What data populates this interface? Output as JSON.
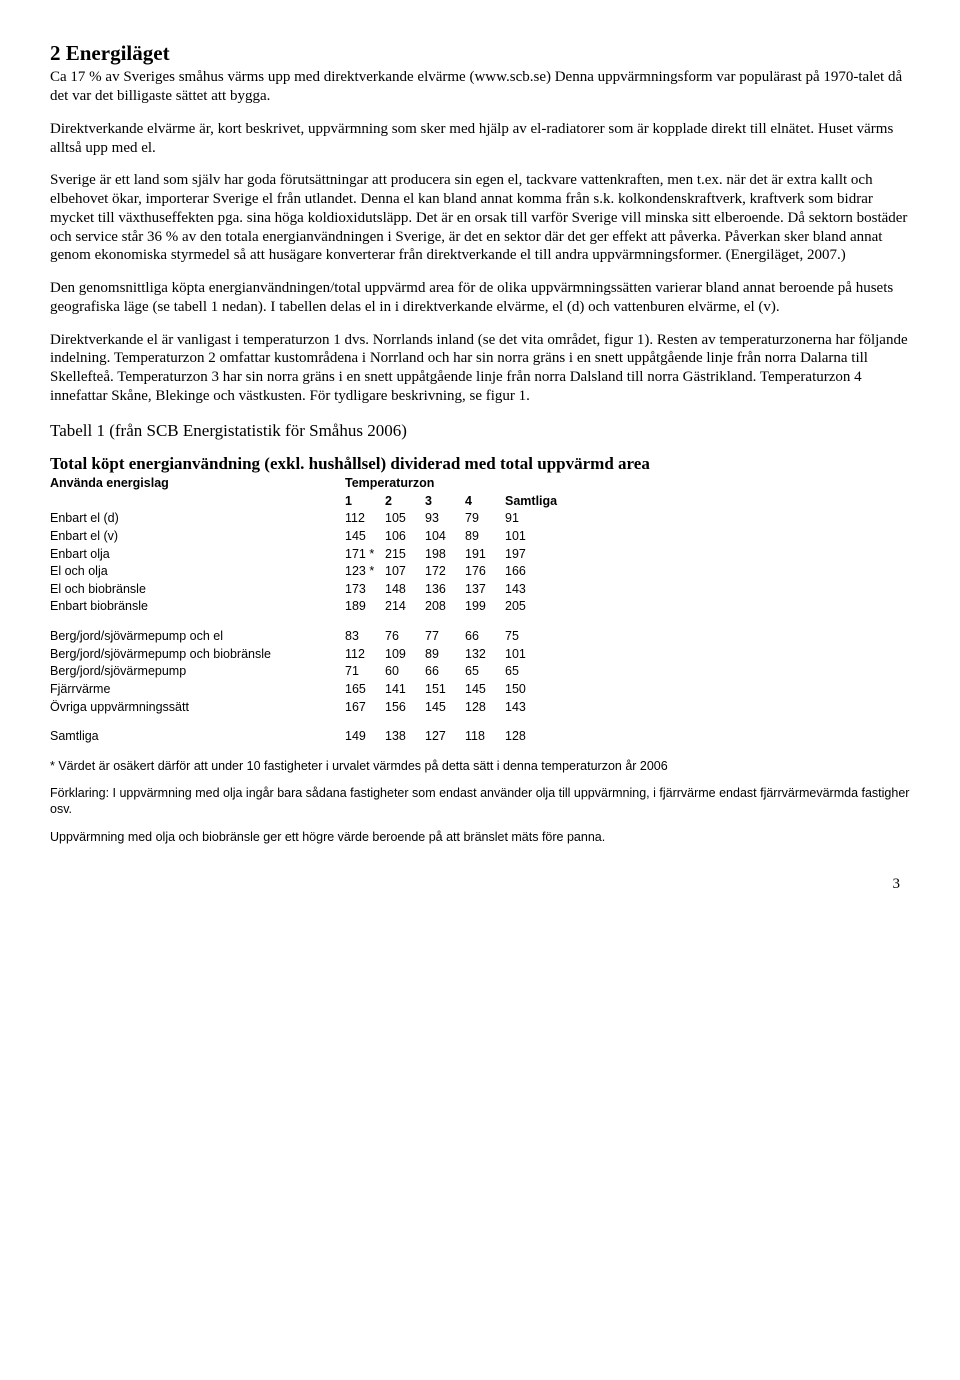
{
  "heading": "2 Energiläget",
  "paragraphs": {
    "p1": "Ca 17 % av Sveriges småhus värms upp med direktverkande elvärme (www.scb.se) Denna uppvärmningsform var populärast på 1970-talet då det var det billigaste sättet att bygga.",
    "p2": "Direktverkande elvärme är, kort beskrivet, uppvärmning som sker med hjälp av el-radiatorer som är kopplade direkt till elnätet. Huset värms alltså upp med el.",
    "p3": "Sverige är ett land som själv har goda förutsättningar att producera sin egen el, tackvare vattenkraften, men t.ex. när det är extra kallt och elbehovet ökar, importerar Sverige el från utlandet. Denna el kan bland annat komma från s.k. kolkondenskraftverk, kraftverk som bidrar mycket till växthuseffekten pga. sina höga koldioxidutsläpp. Det är en orsak till varför Sverige vill minska sitt elberoende. Då sektorn bostäder och service står 36 % av den totala energianvändningen i Sverige, är det en sektor där det ger effekt att påverka. Påverkan sker bland annat genom ekonomiska styrmedel så att husägare konverterar från direktverkande el till andra uppvärmningsformer. (Energiläget, 2007.)",
    "p4": "Den genomsnittliga köpta energianvändningen/total uppvärmd area för de olika uppvärmningssätten varierar bland annat beroende på husets geografiska läge (se tabell 1 nedan). I tabellen delas el in i direktverkande elvärme, el (d) och vattenburen elvärme, el (v).",
    "p5": "Direktverkande el är vanligast i temperaturzon 1 dvs. Norrlands inland (se det vita området, figur 1). Resten av temperaturzonerna har följande indelning. Temperaturzon 2 omfattar kustområdena i Norrland och har sin norra gräns i en snett uppåtgående linje från norra Dalarna till Skellefteå. Temperaturzon 3 har sin norra gräns i en snett uppåtgående linje från norra Dalsland till norra Gästrikland. Temperaturzon 4 innefattar Skåne, Blekinge och västkusten. För tydligare beskrivning, se figur 1."
  },
  "table_caption": "Tabell 1 (från SCB Energistatistik för Småhus 2006)",
  "table_title": "Total köpt energianvändning (exkl. hushållsel) dividerad med total uppvärmd area",
  "table_headers": {
    "left": "Använda energislag",
    "right": "Temperaturzon",
    "c1": "1",
    "c2": "2",
    "c3": "3",
    "c4": "4",
    "c5": "Samtliga"
  },
  "rows_block1": [
    {
      "label": "Enbart el (d)",
      "v": [
        "112",
        "105",
        "93",
        "79",
        "91"
      ]
    },
    {
      "label": "Enbart el (v)",
      "v": [
        "145",
        "106",
        "104",
        "89",
        "101"
      ]
    },
    {
      "label": "Enbart olja",
      "v": [
        "171 *",
        "215",
        "198",
        "191",
        "197"
      ]
    },
    {
      "label": "El och olja",
      "v": [
        "123 *",
        "107",
        "172",
        "176",
        "166"
      ]
    },
    {
      "label": "El och biobränsle",
      "v": [
        "173",
        "148",
        "136",
        "137",
        "143"
      ]
    },
    {
      "label": "Enbart biobränsle",
      "v": [
        "189",
        "214",
        "208",
        "199",
        "205"
      ]
    }
  ],
  "rows_block2": [
    {
      "label": "Berg/jord/sjövärmepump och el",
      "v": [
        "83",
        "76",
        "77",
        "66",
        "75"
      ]
    },
    {
      "label": "Berg/jord/sjövärmepump och biobränsle",
      "v": [
        "112",
        "109",
        "89",
        "132",
        "101"
      ]
    },
    {
      "label": "Berg/jord/sjövärmepump",
      "v": [
        "71",
        "60",
        "66",
        "65",
        "65"
      ]
    },
    {
      "label": "Fjärrvärme",
      "v": [
        "165",
        "141",
        "151",
        "145",
        "150"
      ]
    },
    {
      "label": "Övriga uppvärmningssätt",
      "v": [
        "167",
        "156",
        "145",
        "128",
        "143"
      ]
    }
  ],
  "rows_block3": [
    {
      "label": "Samtliga",
      "v": [
        "149",
        "138",
        "127",
        "118",
        "128"
      ]
    }
  ],
  "footnotes": {
    "f1": "* Värdet är osäkert därför att under 10 fastigheter i urvalet värmdes på detta sätt i denna temperaturzon år 2006",
    "f2": "Förklaring: I uppvärmning med olja ingår bara sådana fastigheter som endast använder olja till uppvärmning, i fjärrvärme endast fjärrvärmevärmda fastigher osv.",
    "f3": "Uppvärmning med olja och biobränsle ger ett högre värde beroende på att bränslet mäts före panna."
  },
  "page_number": "3"
}
